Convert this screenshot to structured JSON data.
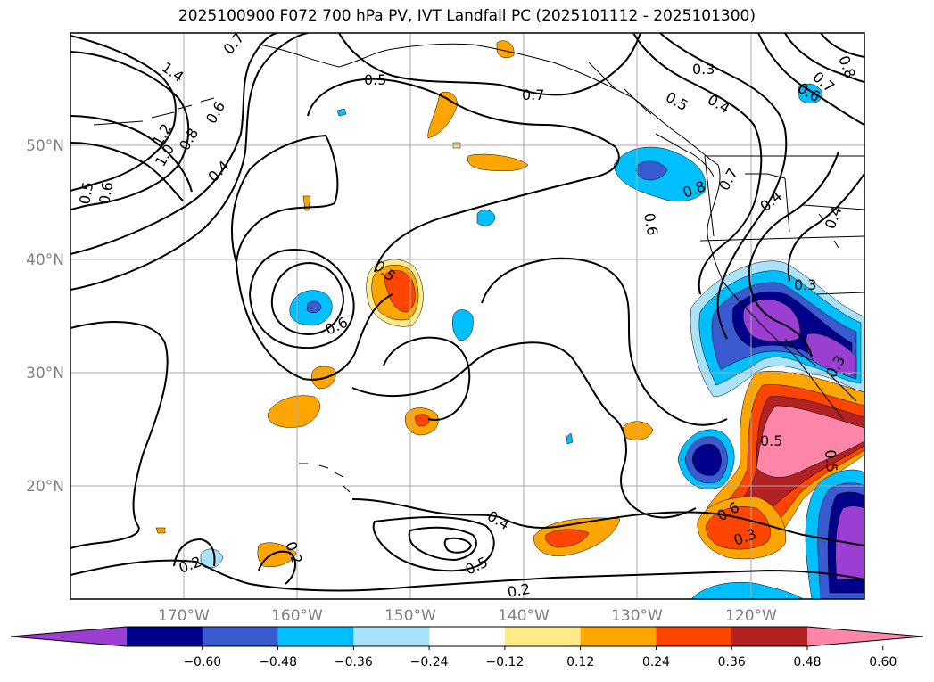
{
  "title": "2025100900 F072 700 hPa PV, IVT Landfall PC (2025101112 - 2025101300)",
  "map": {
    "lat_labels": [
      "50°N",
      "40°N",
      "30°N",
      "20°N"
    ],
    "lon_labels": [
      "170°W",
      "160°W",
      "150°W",
      "140°W",
      "130°W",
      "120°W"
    ],
    "contour_labels": [
      "1.4",
      "0.7",
      "0.5",
      "0.7",
      "0.3",
      "0.5",
      "0.4",
      "0.6",
      "0.7",
      "0.8",
      "1.2",
      "1.0",
      "0.8",
      "0.6",
      "0.4",
      "0.5",
      "0.6",
      "0.8",
      "0.7",
      "0.6",
      "0.4",
      "0.4",
      "0.5",
      "0.6",
      "0.3",
      "0.3",
      "0.5",
      "0.5",
      "0.6",
      "0.3",
      "0.4",
      "0.5",
      "0.2",
      "0.2",
      "0.2"
    ]
  },
  "colorbar": {
    "tick_labels": [
      "−0.60",
      "−0.48",
      "−0.36",
      "−0.24",
      "−0.12",
      "0.12",
      "0.24",
      "0.36",
      "0.48",
      "0.60"
    ],
    "colors": [
      "#9b3fd2",
      "#00008b",
      "#3a5bd0",
      "#00bfff",
      "#a9e2fb",
      "#ffffff",
      "#ffeb8a",
      "#ffa500",
      "#ff4500",
      "#b22222",
      "#ff85a9"
    ]
  }
}
